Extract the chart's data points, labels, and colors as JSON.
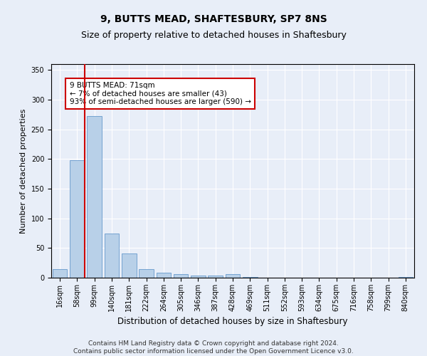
{
  "title1": "9, BUTTS MEAD, SHAFTESBURY, SP7 8NS",
  "title2": "Size of property relative to detached houses in Shaftesbury",
  "xlabel": "Distribution of detached houses by size in Shaftesbury",
  "ylabel": "Number of detached properties",
  "categories": [
    "16sqm",
    "58sqm",
    "99sqm",
    "140sqm",
    "181sqm",
    "222sqm",
    "264sqm",
    "305sqm",
    "346sqm",
    "387sqm",
    "428sqm",
    "469sqm",
    "511sqm",
    "552sqm",
    "593sqm",
    "634sqm",
    "675sqm",
    "716sqm",
    "758sqm",
    "799sqm",
    "840sqm"
  ],
  "values": [
    15,
    198,
    272,
    74,
    41,
    15,
    9,
    6,
    4,
    4,
    6,
    1,
    0,
    0,
    0,
    0,
    0,
    0,
    0,
    0,
    1
  ],
  "bar_color": "#b8d0e8",
  "bar_edge_color": "#6699cc",
  "annotation_text": "9 BUTTS MEAD: 71sqm\n← 7% of detached houses are smaller (43)\n93% of semi-detached houses are larger (590) →",
  "annotation_box_color": "#ffffff",
  "annotation_box_edge_color": "#cc0000",
  "vline_color": "#cc0000",
  "bg_color": "#e8eef8",
  "plot_bg_color": "#e8eef8",
  "footer_text": "Contains HM Land Registry data © Crown copyright and database right 2024.\nContains public sector information licensed under the Open Government Licence v3.0.",
  "ylim": [
    0,
    360
  ],
  "yticks": [
    0,
    50,
    100,
    150,
    200,
    250,
    300,
    350
  ],
  "title1_fontsize": 10,
  "title2_fontsize": 9,
  "xlabel_fontsize": 8.5,
  "ylabel_fontsize": 8,
  "tick_fontsize": 7,
  "footer_fontsize": 6.5,
  "annotation_fontsize": 7.5
}
